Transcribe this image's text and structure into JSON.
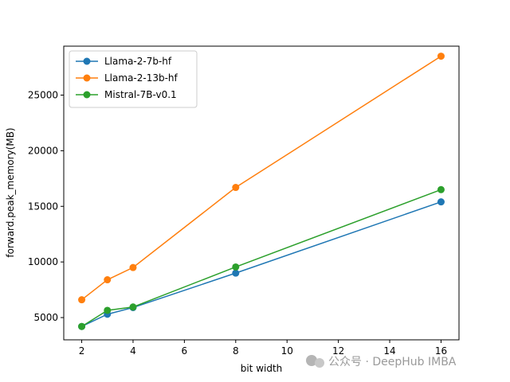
{
  "chart_data": {
    "type": "line",
    "xlabel": "bit width",
    "ylabel": "forward.peak_memory(MB)",
    "xlim": [
      1.3,
      16.7
    ],
    "ylim": [
      3000,
      29400
    ],
    "xticks": [
      2,
      4,
      6,
      8,
      10,
      12,
      14,
      16
    ],
    "yticks": [
      5000,
      10000,
      15000,
      20000,
      25000
    ],
    "grid": false,
    "legend_position": "top-left",
    "series": [
      {
        "name": "Llama-2-7b-hf",
        "color": "#1f77b4",
        "x": [
          2,
          3,
          4,
          8,
          16
        ],
        "y": [
          4200,
          5300,
          5900,
          9000,
          15400
        ]
      },
      {
        "name": "Llama-2-13b-hf",
        "color": "#ff7f0e",
        "x": [
          2,
          3,
          4,
          8,
          16
        ],
        "y": [
          6600,
          8400,
          9500,
          16700,
          28500
        ]
      },
      {
        "name": "Mistral-7B-v0.1",
        "color": "#2ca02c",
        "x": [
          2,
          3,
          4,
          8,
          16
        ],
        "y": [
          4200,
          5650,
          5950,
          9550,
          16500
        ]
      }
    ]
  },
  "watermark": {
    "text": "公众号 · DeepHub IMBA",
    "icon": "wechat-icon"
  }
}
